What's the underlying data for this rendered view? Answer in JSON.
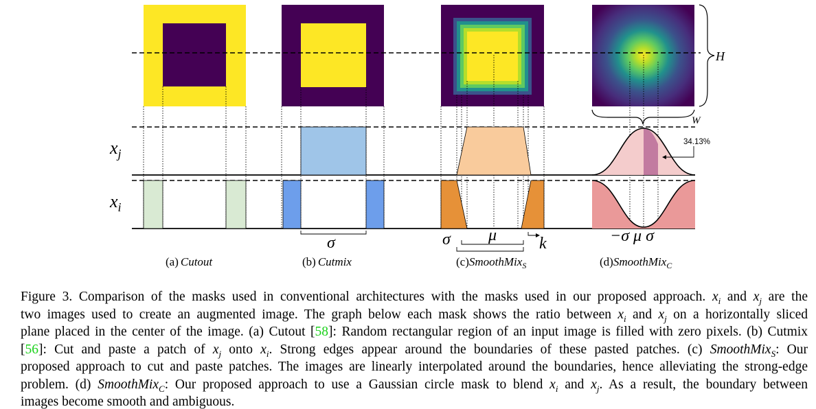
{
  "figure": {
    "row_labels": {
      "xj": "x",
      "xj_sub": "j",
      "xi": "x",
      "xi_sub": "i"
    },
    "dim_labels": {
      "height": "H",
      "width": "W"
    },
    "percent_label": "34.13%",
    "sigma": "σ",
    "mu": "μ",
    "k": "k",
    "neg_sigma_mu_sigma": "−σ μ σ",
    "panels": [
      {
        "prefix": "(a)",
        "name": "Cutout",
        "sub": ""
      },
      {
        "prefix": "(b)",
        "name": "Cutmix",
        "sub": ""
      },
      {
        "prefix": "(c)",
        "name": "SmoothMix",
        "sub": "S"
      },
      {
        "prefix": "(d)",
        "name": "SmoothMix",
        "sub": "C"
      }
    ],
    "colors": {
      "viridis_dark": "#440154",
      "viridis_yellow": "#fde725",
      "cutout_green": "#d9ead3",
      "cutmix_light_blue": "#9fc5e8",
      "cutmix_blue": "#6d9eeb",
      "smooth_peach": "#f9cb9c",
      "smooth_orange": "#e69138",
      "gauss_pink": "#f4cccc",
      "gauss_dark_pink": "#c27ba0",
      "gauss_red": "#ea9999"
    }
  },
  "caption": {
    "fig_num": "Figure 3.",
    "lines": [
      [
        {
          "t": "Figure 3. Comparison of the masks used in conventional architectures with the masks used in our proposed approach. "
        },
        {
          "t": "x",
          "m": 1
        },
        {
          "t": "i",
          "m": 1,
          "sub": 1
        },
        {
          "t": " and "
        },
        {
          "t": "x",
          "m": 1
        },
        {
          "t": "j",
          "m": 1,
          "sub": 1
        },
        {
          "t": " are the"
        }
      ],
      [
        {
          "t": "two images used to create an augmented image. The graph below each mask shows the ratio between "
        },
        {
          "t": "x",
          "m": 1
        },
        {
          "t": "i",
          "m": 1,
          "sub": 1
        },
        {
          "t": " and "
        },
        {
          "t": "x",
          "m": 1
        },
        {
          "t": "j",
          "m": 1,
          "sub": 1
        },
        {
          "t": " on a horizontally sliced"
        }
      ],
      [
        {
          "t": "plane placed in the center of the image. (a) Cutout ["
        },
        {
          "t": "58",
          "ref": 1
        },
        {
          "t": "]: Random rectangular region of an input image is filled with zero pixels. (b) Cutmix"
        }
      ],
      [
        {
          "t": "["
        },
        {
          "t": "56",
          "ref": 1
        },
        {
          "t": "]: Cut and paste a patch of "
        },
        {
          "t": "x",
          "m": 1
        },
        {
          "t": "j",
          "m": 1,
          "sub": 1
        },
        {
          "t": " onto "
        },
        {
          "t": "x",
          "m": 1
        },
        {
          "t": "i",
          "m": 1,
          "sub": 1
        },
        {
          "t": ". Strong edges appear around the boundaries of these pasted patches. (c) "
        },
        {
          "t": "SmoothMix",
          "m": 1
        },
        {
          "t": "S",
          "m": 1,
          "sub": 1
        },
        {
          "t": ": Our"
        }
      ],
      [
        {
          "t": "proposed approach to cut and paste patches. The images are linearly interpolated around the boundaries, hence alleviating the strong-edge"
        }
      ],
      [
        {
          "t": "problem. (d) "
        },
        {
          "t": "SmoothMix",
          "m": 1
        },
        {
          "t": "C",
          "m": 1,
          "sub": 1
        },
        {
          "t": ": Our proposed approach to use a Gaussian circle mask to blend "
        },
        {
          "t": "x",
          "m": 1
        },
        {
          "t": "i",
          "m": 1,
          "sub": 1
        },
        {
          "t": " and "
        },
        {
          "t": "x",
          "m": 1
        },
        {
          "t": "j",
          "m": 1,
          "sub": 1
        },
        {
          "t": ". As a result, the boundary between"
        }
      ],
      [
        {
          "t": "images become smooth and ambiguous."
        }
      ]
    ]
  }
}
